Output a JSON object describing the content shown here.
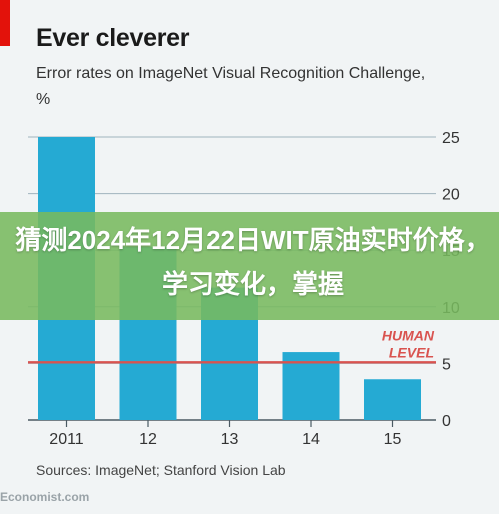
{
  "chart_data": {
    "type": "bar",
    "title": "Ever cleverer",
    "subtitle": "Error rates on ImageNet Visual Recognition Challenge, %",
    "categories": [
      "2011",
      "12",
      "13",
      "14",
      "15"
    ],
    "values": [
      25,
      15.3,
      11.7,
      6.0,
      3.6
    ],
    "ylim": [
      0,
      25
    ],
    "yticks": [
      0,
      5,
      10,
      15,
      20,
      25
    ],
    "reference_line": {
      "value": 5.1,
      "label_line1": "HUMAN",
      "label_line2": "LEVEL"
    },
    "grid": true,
    "xlabel": "",
    "ylabel": ""
  },
  "source": "Sources: ImageNet; Stanford Vision Lab",
  "brand": "Economist.com",
  "overlay": {
    "text": "猜测2024年12月22日WIT原油实时价格，学习变化，掌握"
  },
  "colors": {
    "bar": "#25aad3",
    "human_line": "#d9534f",
    "grid": "#9fb3bd",
    "accent": "#e3120b",
    "banner": "#78b95f"
  }
}
